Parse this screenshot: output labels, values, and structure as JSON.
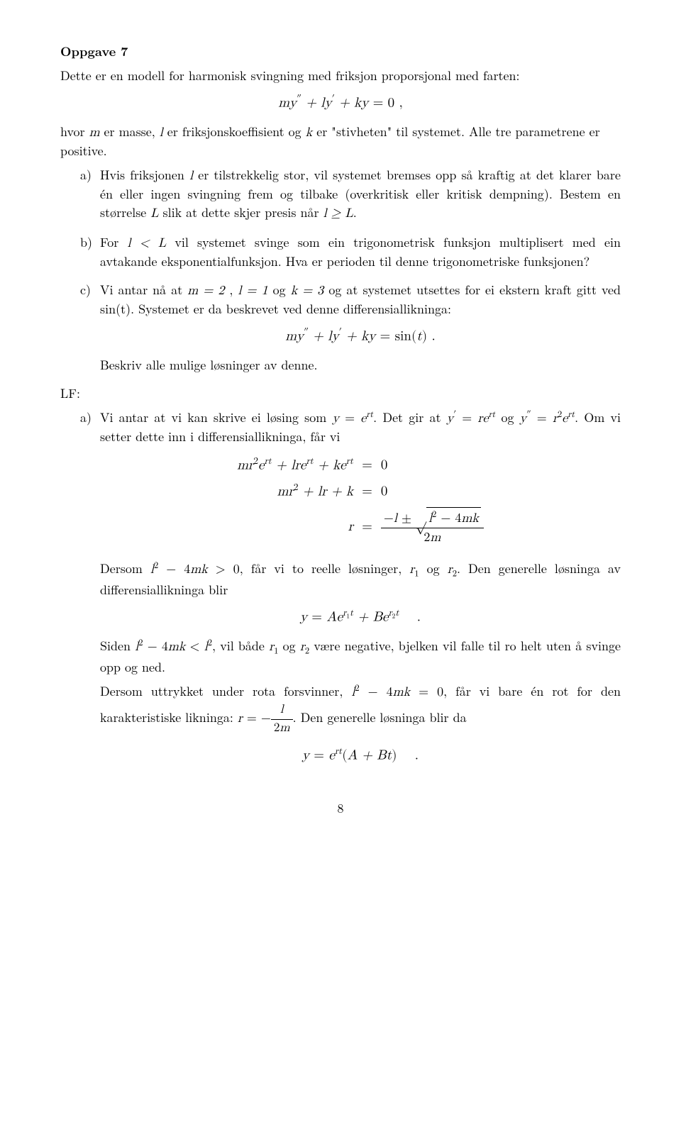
{
  "title": "Oppgave 7",
  "intro1": "Dette er en modell for harmonisk svingning med friksjon proporsjonal med farten:",
  "eq1": "my″ + ly′ + ky = 0 ,",
  "intro2_a": "hvor ",
  "intro2_b": " er masse, ",
  "intro2_c": " er friksjonskoeffisient og ",
  "intro2_d": " er \"stivheten\" til systemet. Alle tre parametrene er positive.",
  "a_label": "a)",
  "a_text1": "Hvis friksjonen ",
  "a_text2": " er tilstrekkelig stor, vil systemet bremses opp så kraftig at det klarer bare én eller ingen svingning frem og tilbake (overkritisk eller kritisk dempning). Bestem en størrelse ",
  "a_text3": " slik at dette skjer presis når ",
  "a_text4": ".",
  "b_label": "b)",
  "b_text1": "For ",
  "b_text2": " vil systemet svinge som ein trigonometrisk funksjon multiplisert med ein avtakande eksponentialfunksjon. Hva er perioden til denne trigonometriske funksjonen?",
  "c_label": "c)",
  "c_text1": "Vi antar nå at ",
  "c_text2": " , ",
  "c_text3": " og ",
  "c_text4": " og at systemet utsettes for ei ekstern kraft gitt ved ",
  "c_text5": ". Systemet er da beskrevet ved denne differensiallikninga:",
  "eq2": "my″ + ly′ + ky = sin(t) .",
  "c_text6": "Beskriv alle mulige løsninger av denne.",
  "lf": "LF:",
  "la_label": "a)",
  "la_text1": "Vi antar at vi kan skrive ei løsing som ",
  "la_text2": ". Det gir at ",
  "la_text3": " og ",
  "la_text4": ". Om vi setter dette inn i differensiallikninga, får vi",
  "eqs_l1_l": "mr²eʳᵗ + lreʳᵗ + keʳᵗ",
  "eqs_l1_r": "0",
  "eqs_l2_l": "mr² + lr + k",
  "eqs_l2_r": "0",
  "eqs_l3_l": "r",
  "eqs_frac_num": "−l ± √(l² − 4mk)",
  "eqs_frac_den": "2m",
  "la_text5a": "Dersom ",
  "la_text5b": ", får vi to reelle løsninger, ",
  "la_text5c": " og ",
  "la_text5d": ". Den generelle løsninga av differensiallikninga blir",
  "eq3": "y = Aeʳ¹ᵗ + Beʳ²ᵗ    .",
  "la_text6a": "Siden ",
  "la_text6b": ", vil både ",
  "la_text6c": " og ",
  "la_text6d": " være negative, bjelken vil falle til ro helt uten å svinge opp og ned.",
  "la_text7a": "Dersom uttrykket under rota forsvinner, ",
  "la_text7b": ", får vi bare én rot for den karakteristiske likninga: ",
  "la_text7c": ". Den generelle løsninga blir da",
  "eq4": "y = eʳᵗ(A + Bt)    .",
  "page": "8",
  "math": {
    "m": "m",
    "l": "l",
    "k": "k",
    "L": "L",
    "l_ge_L": "l ≥ L",
    "l_lt_L": "l < L",
    "m2": "m = 2",
    "l1": "l = 1",
    "k3": "k = 3",
    "sint": "sin(t)",
    "y_ert": "y = eʳᵗ",
    "yp_rert": "y′ = reʳᵗ",
    "ypp_r2ert": "y″ = r²eʳᵗ",
    "cond_gt": "l² − 4mk > 0",
    "r1": "r₁",
    "r2": "r₂",
    "cond_lt": "l² − 4mk < l²",
    "cond_eq": "l² − 4mk = 0",
    "r_eq": "r = −",
    "frac_l_2m_num": "l",
    "frac_l_2m_den": "2m"
  }
}
